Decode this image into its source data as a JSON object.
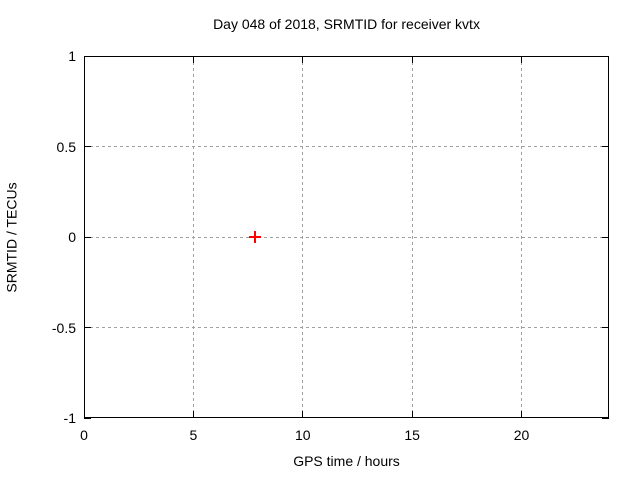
{
  "chart_data": {
    "type": "scatter",
    "title": "Day 048 of 2018, SRMTID for receiver kvtx",
    "xlabel": "GPS time / hours",
    "ylabel": "SRMTID / TECUs",
    "xlim": [
      0,
      24
    ],
    "ylim": [
      -1,
      1
    ],
    "x_ticks": [
      0,
      5,
      10,
      15,
      20
    ],
    "y_ticks": [
      1,
      0.5,
      0,
      -0.5,
      -1
    ],
    "grid": "dotted",
    "grid_color": "#a0a0a0",
    "border_color": "#000000",
    "background_color": "#ffffff",
    "legend": "none",
    "series": [
      {
        "name": "SRMTID",
        "marker": "plus",
        "color": "#ff0000",
        "points": [
          [
            7.8,
            0.0
          ]
        ]
      }
    ]
  }
}
